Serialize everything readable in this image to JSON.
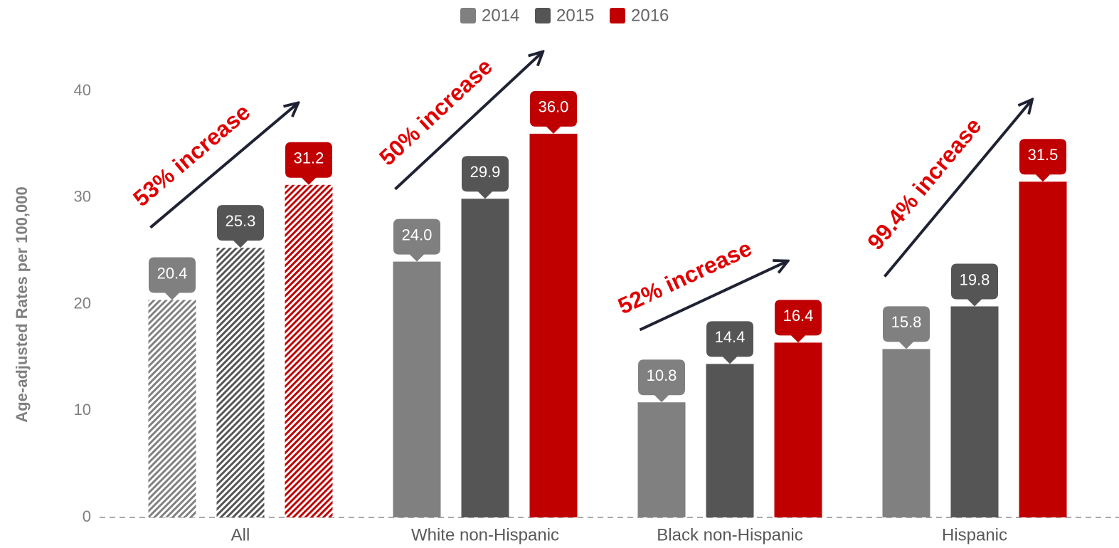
{
  "chart_data": {
    "type": "bar",
    "y_label": "Age-adjusted Rates per 100,000",
    "categories": [
      "All",
      "White non-Hispanic",
      "Black non-Hispanic",
      "Hispanic"
    ],
    "series": [
      {
        "name": "2014",
        "color": "#808080",
        "values": [
          20.4,
          24.0,
          10.8,
          15.8
        ],
        "value_labels": [
          "20.4",
          "24.0",
          "10.8",
          "15.8"
        ]
      },
      {
        "name": "2015",
        "color": "#555555",
        "values": [
          25.3,
          29.9,
          14.4,
          19.8
        ],
        "value_labels": [
          "25.3",
          "29.9",
          "14.4",
          "19.8"
        ]
      },
      {
        "name": "2016",
        "color": "#c00000",
        "values": [
          31.2,
          36.0,
          16.4,
          31.5
        ],
        "value_labels": [
          "31.2",
          "36.0",
          "16.4",
          "31.5"
        ]
      }
    ],
    "hatched": [
      true,
      false,
      false,
      false
    ],
    "annotations": [
      {
        "text": "53% increase",
        "category": "All"
      },
      {
        "text": "50% increase",
        "category": "White non-Hispanic"
      },
      {
        "text": "52% increase",
        "category": "Black non-Hispanic"
      },
      {
        "text": "99.4% increase",
        "category": "Hispanic"
      }
    ],
    "ylim": [
      0,
      40
    ],
    "yticks": [
      0,
      10,
      20,
      30,
      40
    ],
    "grid": false,
    "legend": "top"
  }
}
